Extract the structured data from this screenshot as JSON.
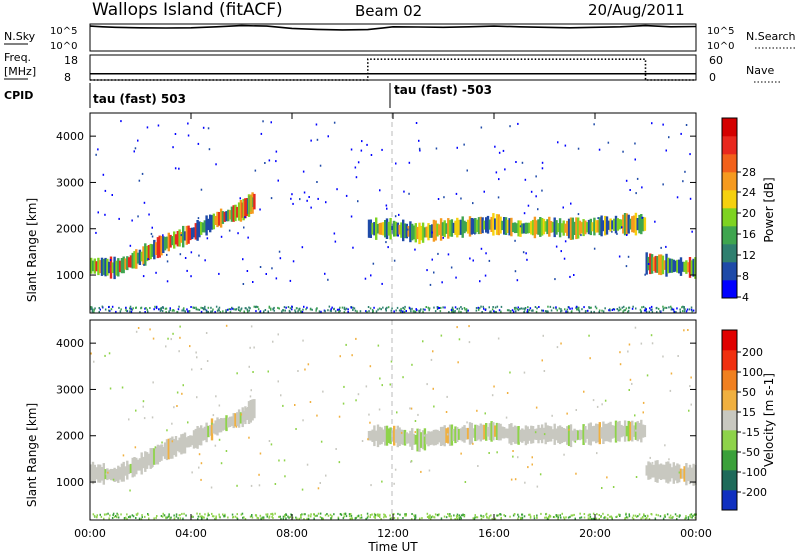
{
  "header": {
    "station": "Wallops Island (fitACF)",
    "beam": "Beam 02",
    "date": "20/Aug/2011"
  },
  "top_panels": {
    "nsky_label": "N.Sky",
    "nsky_ticks": [
      "10^5",
      "10^0"
    ],
    "nsearch_label": "N.Search",
    "nsearch_ticks": [
      "10^5",
      "10^0"
    ],
    "freq_label": "Freq.",
    "freq_unit": "[MHz]",
    "freq_ticks": [
      "18",
      "8"
    ],
    "nave_label": "Nave",
    "nave_ticks": [
      "60",
      "0"
    ],
    "cpid_label": "CPID",
    "cpid_segments": [
      {
        "start_hour": 0,
        "label": "tau (fast) 503"
      },
      {
        "start_hour": 12,
        "label": "tau (fast) -503"
      }
    ],
    "nave_step": {
      "low_value": 0,
      "high_value": 50,
      "high_from_hour": 11,
      "high_to_hour": 22
    }
  },
  "axes": {
    "x_label": "Time UT",
    "x_ticks": [
      "00:00",
      "04:00",
      "08:00",
      "12:00",
      "16:00",
      "20:00",
      "00:00"
    ],
    "y_label_power": "Slant Range [km]",
    "y_label_velocity": "Slant Range [km]",
    "y_ticks": [
      "4000",
      "3000",
      "2000",
      "1000"
    ]
  },
  "colorbars": {
    "power": {
      "title": "Power [dB]",
      "ticks": [
        "28",
        "24",
        "20",
        "16",
        "12",
        "8",
        "4"
      ],
      "colors": [
        "#0000ff",
        "#1e4aa8",
        "#2f7f6f",
        "#3fa54f",
        "#7ed321",
        "#f5d10f",
        "#f59a1f",
        "#f2611b",
        "#e8281e",
        "#d40000"
      ]
    },
    "velocity": {
      "title": "Velocity [m s-1]",
      "ticks": [
        "200",
        "100",
        "50",
        "15",
        "-15",
        "-50",
        "-100",
        "-200"
      ],
      "colors": [
        "#1030c0",
        "#1e6a5a",
        "#3aa03a",
        "#8ed34a",
        "#c8c8c0",
        "#f0b040",
        "#f08020",
        "#f03010",
        "#e00000"
      ]
    }
  },
  "chart_data": [
    {
      "type": "line",
      "title": "N.Sky",
      "x_unit": "hour UT",
      "x": [
        0,
        0.5,
        1,
        2,
        3,
        4,
        5,
        6,
        7,
        8,
        9,
        10,
        11,
        12,
        13,
        14,
        15,
        16,
        17,
        18,
        19,
        20,
        21,
        22,
        23,
        24
      ],
      "series": [
        {
          "name": "N.Sky",
          "values": [
            40000,
            30000,
            25000,
            20000,
            18000,
            20000,
            30000,
            50000,
            40000,
            15000,
            10000,
            8000,
            9000,
            30000,
            28000,
            25000,
            30000,
            40000,
            30000,
            25000,
            20000,
            25000,
            30000,
            50000,
            30000,
            35000
          ]
        }
      ],
      "yscale": "log",
      "ylim": [
        1,
        100000
      ]
    },
    {
      "type": "line",
      "title": "Freq.",
      "x": [
        0,
        24
      ],
      "series": [
        {
          "name": "Freq.",
          "values": [
            10.5,
            10.5
          ]
        }
      ],
      "ylim": [
        8,
        18
      ]
    },
    {
      "type": "heatmap",
      "title": "Power [dB]",
      "xlabel": "Time UT",
      "ylabel": "Slant Range [km]",
      "xlim": [
        0,
        24
      ],
      "ylim": [
        180,
        4500
      ],
      "bands": [
        {
          "x": [
            0,
            1,
            2,
            3,
            4,
            5,
            6,
            6.5
          ],
          "y": [
            1200,
            1150,
            1400,
            1700,
            1900,
            2200,
            2400,
            2600
          ],
          "power_db": 24
        },
        {
          "x": [
            11,
            12,
            13,
            14,
            15,
            16,
            17,
            18,
            19,
            20,
            21,
            22
          ],
          "y": [
            2000,
            2000,
            1900,
            2000,
            2050,
            2100,
            2000,
            2050,
            2000,
            2050,
            2100,
            2100
          ],
          "power_db": 16
        },
        {
          "x": [
            22,
            23,
            24
          ],
          "y": [
            1250,
            1200,
            1150
          ],
          "power_db": 24
        }
      ]
    },
    {
      "type": "heatmap",
      "title": "Velocity [m s-1]",
      "xlabel": "Time UT",
      "ylabel": "Slant Range [km]",
      "xlim": [
        0,
        24
      ],
      "ylim": [
        180,
        4500
      ],
      "bands": [
        {
          "x": [
            0,
            1,
            2,
            3,
            4,
            5,
            6,
            6.5
          ],
          "y": [
            1200,
            1150,
            1400,
            1700,
            1900,
            2200,
            2400,
            2600
          ],
          "velocity": 0
        },
        {
          "x": [
            11,
            12,
            13,
            14,
            15,
            16,
            17,
            18,
            19,
            20,
            21,
            22
          ],
          "y": [
            2000,
            2000,
            1900,
            2000,
            2050,
            2100,
            2000,
            2050,
            2000,
            2050,
            2100,
            2100
          ],
          "velocity": 0
        },
        {
          "x": [
            22,
            23,
            24
          ],
          "y": [
            1250,
            1200,
            1150
          ],
          "velocity": 0
        }
      ]
    }
  ]
}
